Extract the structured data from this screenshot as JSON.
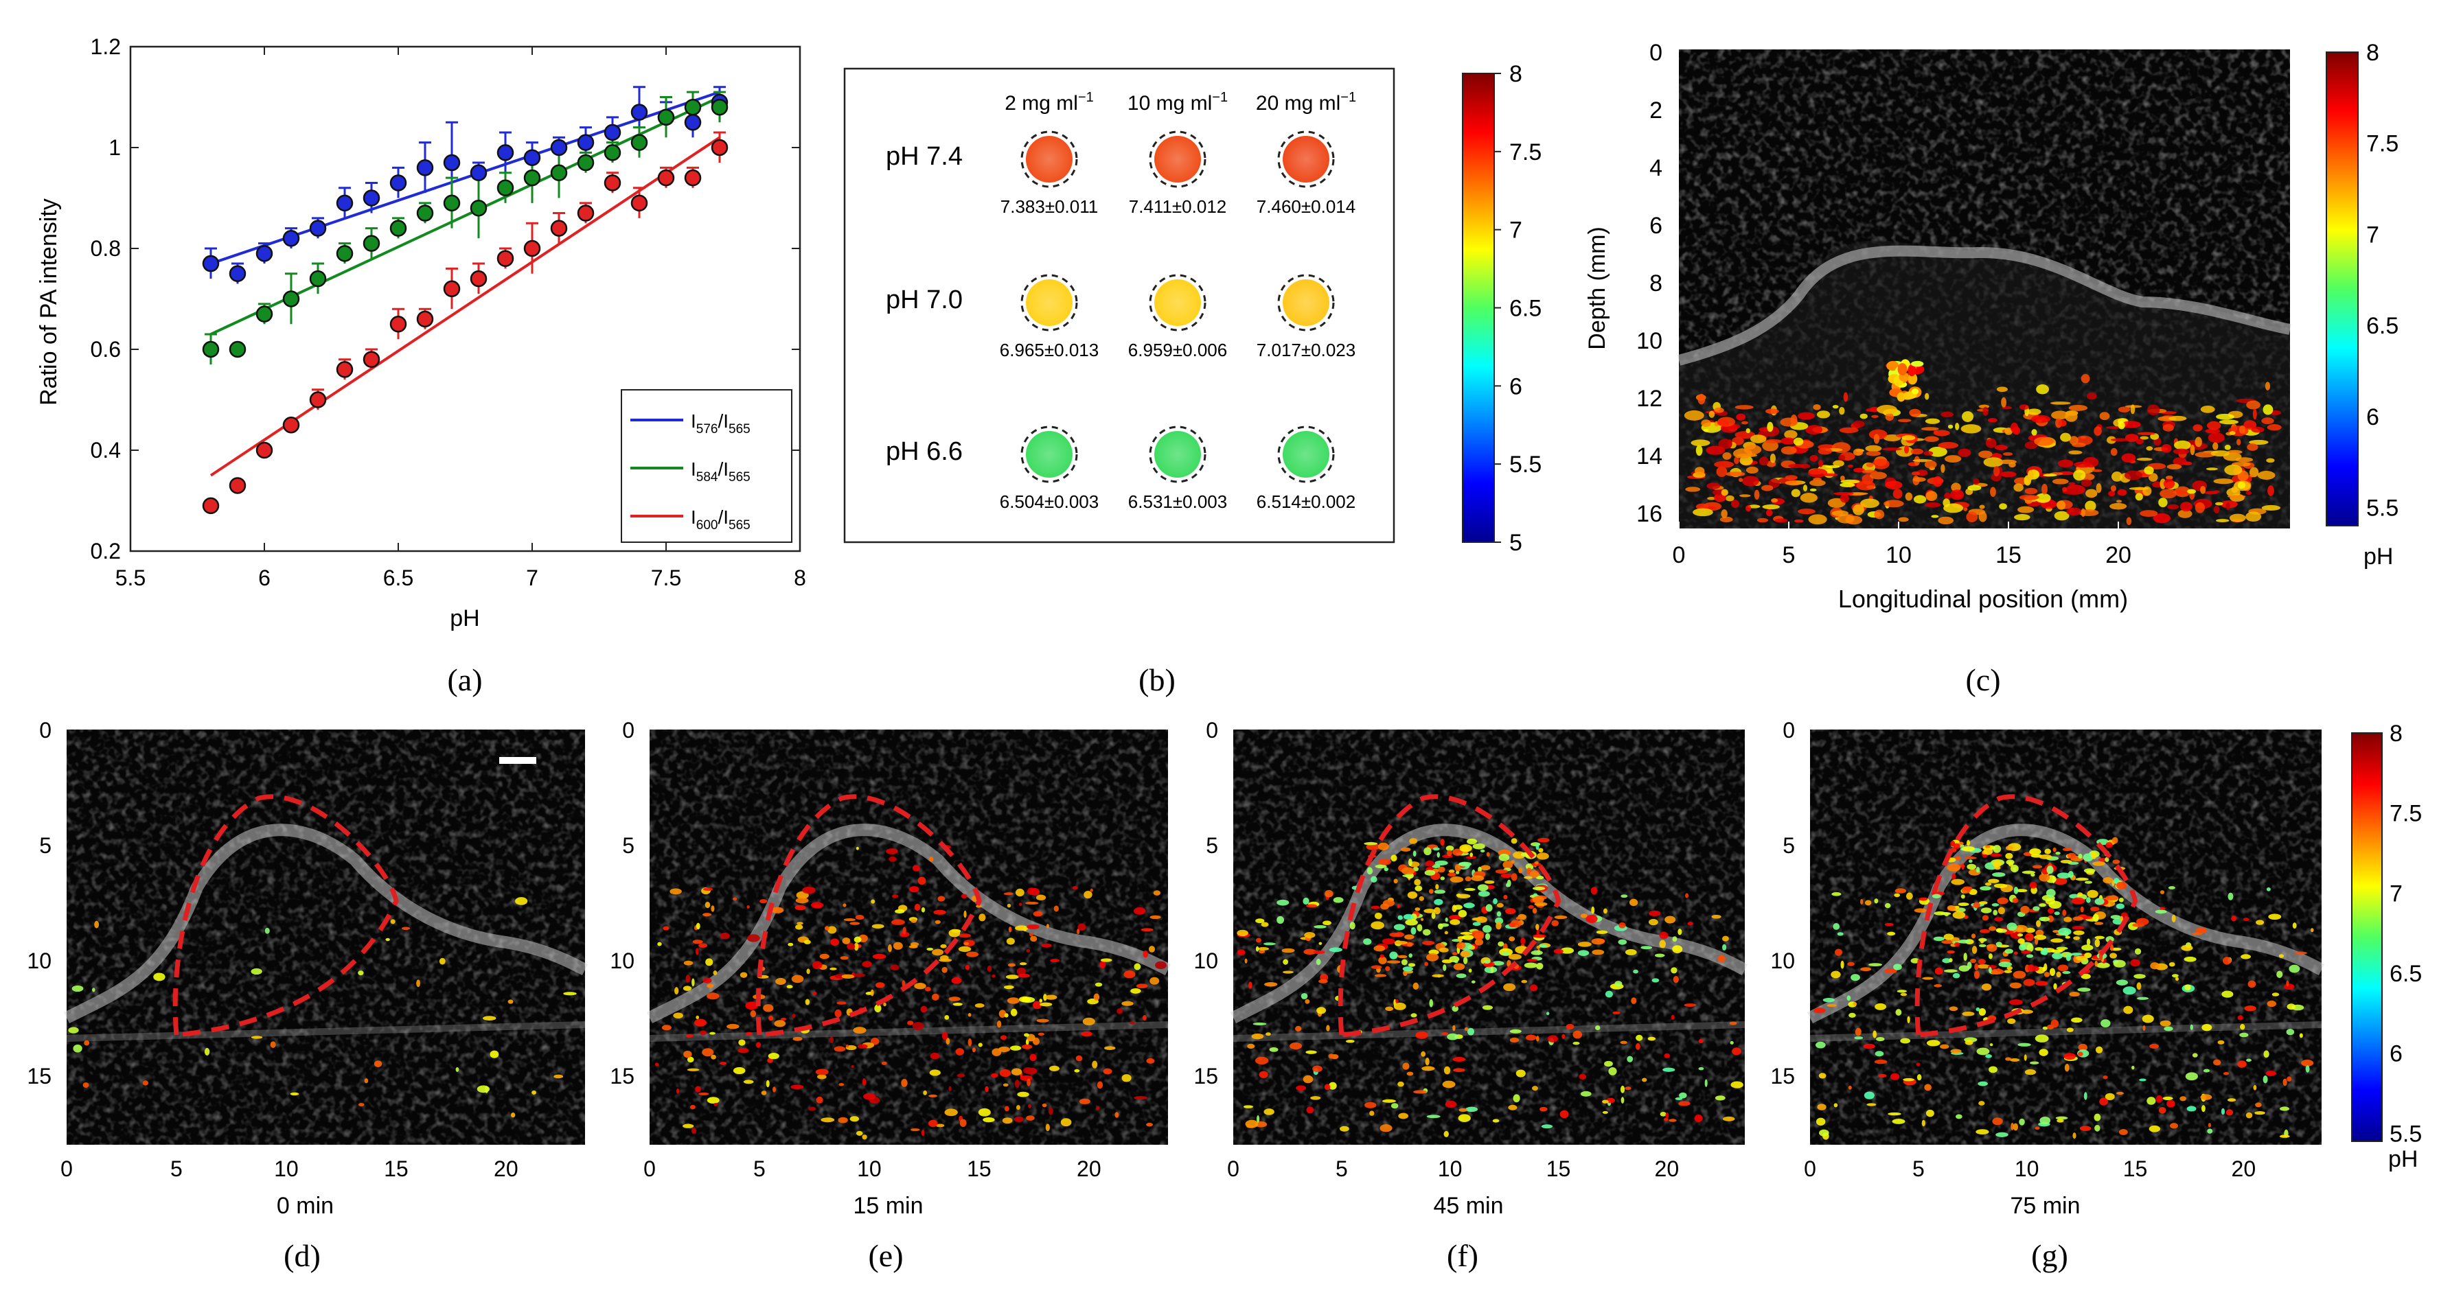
{
  "panel_labels": [
    "(a)",
    "(b)",
    "(c)",
    "(d)",
    "(e)",
    "(f)",
    "(g)"
  ],
  "colors": {
    "blue_series": "#1f2bd6",
    "green_series": "#138a1f",
    "red_series": "#e12222",
    "roi_outline": "#e02020",
    "image_bg": "#060606"
  },
  "chart_data": [
    {
      "type": "scatter",
      "panel": "a",
      "xlabel": "pH",
      "ylabel": "Ratio of PA intensity",
      "xlim": [
        5.5,
        8
      ],
      "ylim": [
        0.2,
        1.2
      ],
      "xticks": [
        "5.5",
        "6",
        "6.5",
        "7",
        "7.5",
        "8"
      ],
      "yticks": [
        "0.2",
        "0.4",
        "0.6",
        "0.8",
        "1",
        "1.2"
      ],
      "legend_position": "lower-right",
      "x": [
        5.8,
        5.9,
        6.0,
        6.1,
        6.2,
        6.3,
        6.4,
        6.5,
        6.6,
        6.7,
        6.8,
        6.9,
        7.0,
        7.1,
        7.2,
        7.3,
        7.4,
        7.5,
        7.6,
        7.7
      ],
      "series": [
        {
          "name": "I576/I565",
          "num": "576",
          "den": "565",
          "color": "#1f2bd6",
          "values": [
            0.77,
            0.75,
            0.79,
            0.82,
            0.84,
            0.89,
            0.9,
            0.93,
            0.96,
            0.97,
            0.95,
            0.99,
            0.98,
            1.0,
            1.01,
            1.03,
            1.07,
            1.06,
            1.05,
            1.09
          ],
          "errors": [
            0.03,
            0.02,
            0.02,
            0.02,
            0.02,
            0.03,
            0.03,
            0.03,
            0.05,
            0.08,
            0.02,
            0.04,
            0.03,
            0.02,
            0.03,
            0.03,
            0.05,
            0.03,
            0.03,
            0.03
          ],
          "fit": [
            [
              5.8,
              0.77
            ],
            [
              7.7,
              1.11
            ]
          ]
        },
        {
          "name": "I584/I565",
          "num": "584",
          "den": "565",
          "color": "#138a1f",
          "values": [
            0.6,
            0.6,
            0.67,
            0.7,
            0.74,
            0.79,
            0.81,
            0.84,
            0.87,
            0.89,
            0.88,
            0.92,
            0.94,
            0.95,
            0.97,
            0.99,
            1.01,
            1.06,
            1.08,
            1.08
          ],
          "errors": [
            0.03,
            0.0,
            0.02,
            0.05,
            0.03,
            0.02,
            0.03,
            0.02,
            0.02,
            0.05,
            0.06,
            0.03,
            0.05,
            0.05,
            0.02,
            0.02,
            0.03,
            0.04,
            0.03,
            0.03
          ],
          "fit": [
            [
              5.8,
              0.63
            ],
            [
              7.7,
              1.1
            ]
          ]
        },
        {
          "name": "I600/I565",
          "num": "600",
          "den": "565",
          "color": "#e12222",
          "values": [
            0.29,
            0.33,
            0.4,
            0.45,
            0.5,
            0.56,
            0.58,
            0.65,
            0.66,
            0.72,
            0.74,
            0.78,
            0.8,
            0.84,
            0.87,
            0.93,
            0.89,
            0.94,
            0.94,
            1.0
          ],
          "errors": [
            0.0,
            0.0,
            0.0,
            0.0,
            0.02,
            0.02,
            0.02,
            0.03,
            0.02,
            0.04,
            0.03,
            0.02,
            0.05,
            0.03,
            0.02,
            0.02,
            0.03,
            0.02,
            0.02,
            0.03
          ],
          "fit": [
            [
              5.8,
              0.35
            ],
            [
              7.7,
              1.02
            ]
          ]
        }
      ]
    },
    {
      "type": "table",
      "panel": "b",
      "columns": [
        "2 mg ml",
        "10 mg ml",
        "20 mg ml"
      ],
      "column_superscript": "−1",
      "rows": [
        {
          "label": "pH 7.4",
          "values": [
            "7.383±0.011",
            "7.411±0.012",
            "7.460±0.014"
          ],
          "colors": [
            "#f0501c",
            "#f0501c",
            "#ee4a1c"
          ]
        },
        {
          "label": "pH 7.0",
          "values": [
            "6.965±0.013",
            "6.959±0.006",
            "7.017±0.023"
          ],
          "colors": [
            "#ffd21e",
            "#ffd21e",
            "#ffc81e"
          ]
        },
        {
          "label": "pH 6.6",
          "values": [
            "6.504±0.003",
            "6.531±0.003",
            "6.514±0.002"
          ],
          "colors": [
            "#3fdc63",
            "#3fdc63",
            "#3fdc63"
          ]
        }
      ],
      "colorbar_ticks": [
        "8",
        "7.5",
        "7",
        "6.5",
        "6",
        "5.5",
        "5"
      ]
    },
    {
      "type": "heatmap",
      "panel": "c",
      "xlabel": "Longitudinal position (mm)",
      "ylabel": "Depth (mm)",
      "xticks": [
        "0",
        "5",
        "10",
        "15",
        "20"
      ],
      "yticks": [
        "0",
        "2",
        "4",
        "6",
        "8",
        "10",
        "12",
        "14",
        "16"
      ],
      "colorbar_ticks": [
        "8",
        "7.5",
        "7",
        "6.5",
        "6",
        "5.5"
      ],
      "colorbar_unit": "pH"
    },
    {
      "type": "heatmap",
      "panels": [
        "d",
        "e",
        "f",
        "g"
      ],
      "time_labels": [
        "0 min",
        "15 min",
        "45 min",
        "75 min"
      ],
      "xticks": [
        "0",
        "5",
        "10",
        "15",
        "20"
      ],
      "yticks": [
        "0",
        "5",
        "10",
        "15"
      ],
      "colorbar_ticks": [
        "8",
        "7.5",
        "7",
        "6.5",
        "6",
        "5.5"
      ],
      "colorbar_unit": "pH"
    }
  ]
}
